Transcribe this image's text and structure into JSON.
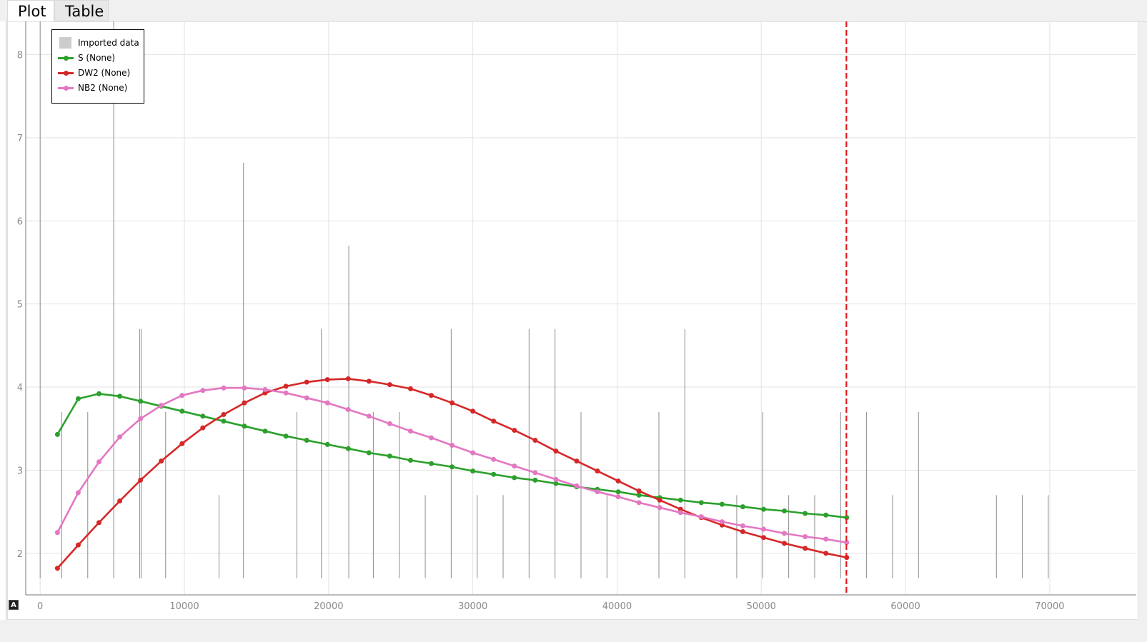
{
  "tabs": [
    {
      "label": "Plot"
    },
    {
      "label": "Table"
    }
  ],
  "auto_button": {
    "label": "A"
  },
  "colors": {
    "series_s": "#2ca02c",
    "series_dw2": "#d62728",
    "series_nb2": "#e377c2",
    "imported": "#cccccc",
    "cursor": "#e31a1c"
  },
  "chart_data": {
    "type": "line",
    "title": "",
    "xlabel": "",
    "ylabel": "",
    "xlim": [
      -1000,
      76000
    ],
    "ylim": [
      1.5,
      8.4
    ],
    "x_ticks": [
      0,
      10000,
      20000,
      30000,
      40000,
      50000,
      60000,
      70000
    ],
    "y_ticks": [
      2,
      3,
      4,
      5,
      6,
      7,
      8
    ],
    "grid": true,
    "legend_position": "top-left",
    "vertical_marker_x": 55900,
    "imported_data": {
      "name": "Imported data",
      "type": "stem",
      "baseline": 1.7,
      "x": [
        0,
        1500,
        3300,
        5100,
        6900,
        7000,
        8700,
        12400,
        14100,
        17800,
        19500,
        21400,
        23100,
        24900,
        26700,
        28500,
        30300,
        32100,
        33900,
        35700,
        37500,
        39300,
        42900,
        44700,
        48300,
        50100,
        51900,
        53700,
        55500,
        57300,
        59100,
        60900,
        66300,
        68100,
        69900
      ],
      "y": [
        8.4,
        3.7,
        3.7,
        8.4,
        4.7,
        4.7,
        3.7,
        2.7,
        6.7,
        3.7,
        4.7,
        5.7,
        3.7,
        3.7,
        2.7,
        4.7,
        2.7,
        2.7,
        4.7,
        4.7,
        3.7,
        2.7,
        3.7,
        4.7,
        2.7,
        3.7,
        2.7,
        2.7,
        3.7,
        3.7,
        2.7,
        3.7,
        2.7,
        2.7,
        2.7
      ]
    },
    "x": [
      1200,
      2640,
      4080,
      5520,
      6960,
      8400,
      9840,
      11280,
      12720,
      14160,
      15600,
      17040,
      18480,
      19920,
      21360,
      22800,
      24240,
      25680,
      27120,
      28560,
      30000,
      31440,
      32880,
      34320,
      35760,
      37200,
      38640,
      40080,
      41520,
      42960,
      44400,
      45840,
      47280,
      48720,
      50160,
      51600,
      53040,
      54480,
      55920
    ],
    "series": [
      {
        "name": "S (None)",
        "values": [
          3.43,
          3.86,
          3.92,
          3.89,
          3.83,
          3.77,
          3.71,
          3.65,
          3.59,
          3.53,
          3.47,
          3.41,
          3.36,
          3.31,
          3.26,
          3.21,
          3.17,
          3.12,
          3.08,
          3.04,
          2.99,
          2.95,
          2.91,
          2.88,
          2.84,
          2.8,
          2.77,
          2.74,
          2.7,
          2.67,
          2.64,
          2.61,
          2.59,
          2.56,
          2.53,
          2.51,
          2.48,
          2.46,
          2.43
        ]
      },
      {
        "name": "DW2 (None)",
        "values": [
          1.82,
          2.1,
          2.37,
          2.63,
          2.88,
          3.11,
          3.32,
          3.51,
          3.67,
          3.81,
          3.93,
          4.01,
          4.06,
          4.09,
          4.1,
          4.07,
          4.03,
          3.98,
          3.9,
          3.81,
          3.71,
          3.59,
          3.48,
          3.36,
          3.23,
          3.11,
          2.99,
          2.87,
          2.75,
          2.64,
          2.53,
          2.43,
          2.34,
          2.26,
          2.19,
          2.12,
          2.06,
          2.0,
          1.95
        ]
      },
      {
        "name": "NB2 (None)",
        "values": [
          2.25,
          2.73,
          3.1,
          3.4,
          3.62,
          3.78,
          3.9,
          3.96,
          3.99,
          3.99,
          3.97,
          3.93,
          3.87,
          3.81,
          3.73,
          3.65,
          3.56,
          3.47,
          3.39,
          3.3,
          3.21,
          3.13,
          3.05,
          2.97,
          2.89,
          2.81,
          2.74,
          2.68,
          2.61,
          2.55,
          2.49,
          2.44,
          2.38,
          2.33,
          2.29,
          2.24,
          2.2,
          2.17,
          2.13
        ]
      }
    ]
  }
}
